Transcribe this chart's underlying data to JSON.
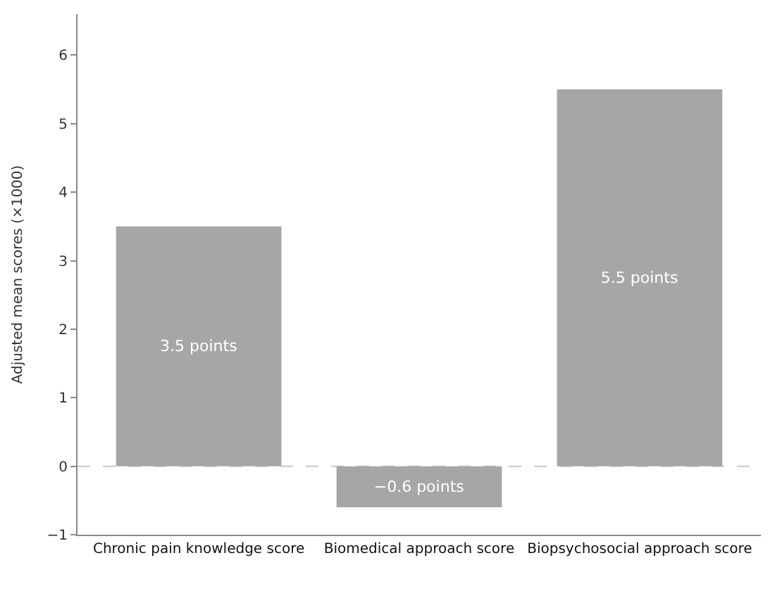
{
  "chart_data": {
    "type": "bar",
    "ylabel": "Adjusted mean scores (×1000)",
    "categories": [
      "Chronic pain knowledge score",
      "Biomedical approach score",
      "Biopsychosocial approach score"
    ],
    "values": [
      3.5,
      -0.6,
      5.5
    ],
    "value_labels": [
      "3.5 points",
      "−0.6 points",
      "5.5 points"
    ],
    "color": "#a6a6a6",
    "ylim": [
      -1,
      6.6
    ],
    "yticks": [
      -1,
      0,
      1,
      2,
      3,
      4,
      5,
      6
    ],
    "ref_lines": [
      {
        "axis": "y",
        "value": 0,
        "label": null,
        "color": "#c8c8c8",
        "line_style": "dashed"
      }
    ],
    "grid": false
  }
}
